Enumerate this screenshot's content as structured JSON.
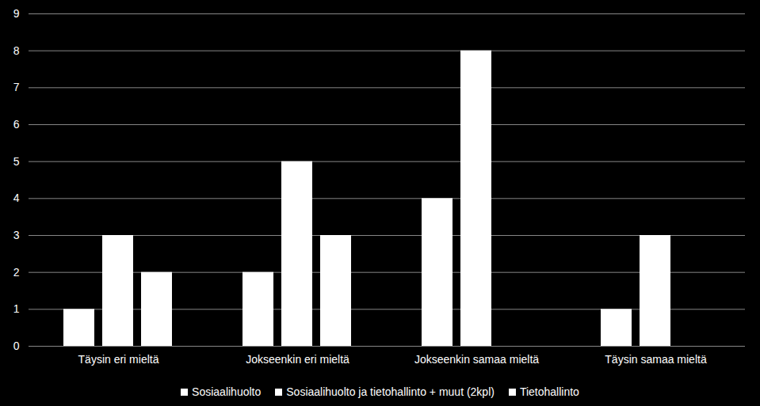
{
  "chart_data": {
    "type": "bar",
    "categories": [
      "Täysin eri mieltä",
      "Jokseenkin eri mieltä",
      "Jokseenkin samaa mieltä",
      "Täysin samaa mieltä"
    ],
    "series": [
      {
        "name": "Sosiaalihuolto",
        "color": "#ffffff",
        "values": [
          1,
          2,
          4,
          1
        ]
      },
      {
        "name": "Sosiaalihuolto ja tietohallinto + muut (2kpl)",
        "color": "#ffffff",
        "values": [
          3,
          5,
          8,
          3
        ]
      },
      {
        "name": "Tietohallinto",
        "color": "#ffffff",
        "values": [
          2,
          3,
          0,
          0
        ]
      }
    ],
    "ylim": [
      0,
      9
    ],
    "yticks": [
      0,
      1,
      2,
      3,
      4,
      5,
      6,
      7,
      8,
      9
    ],
    "grid": true,
    "legend": "bottom"
  }
}
